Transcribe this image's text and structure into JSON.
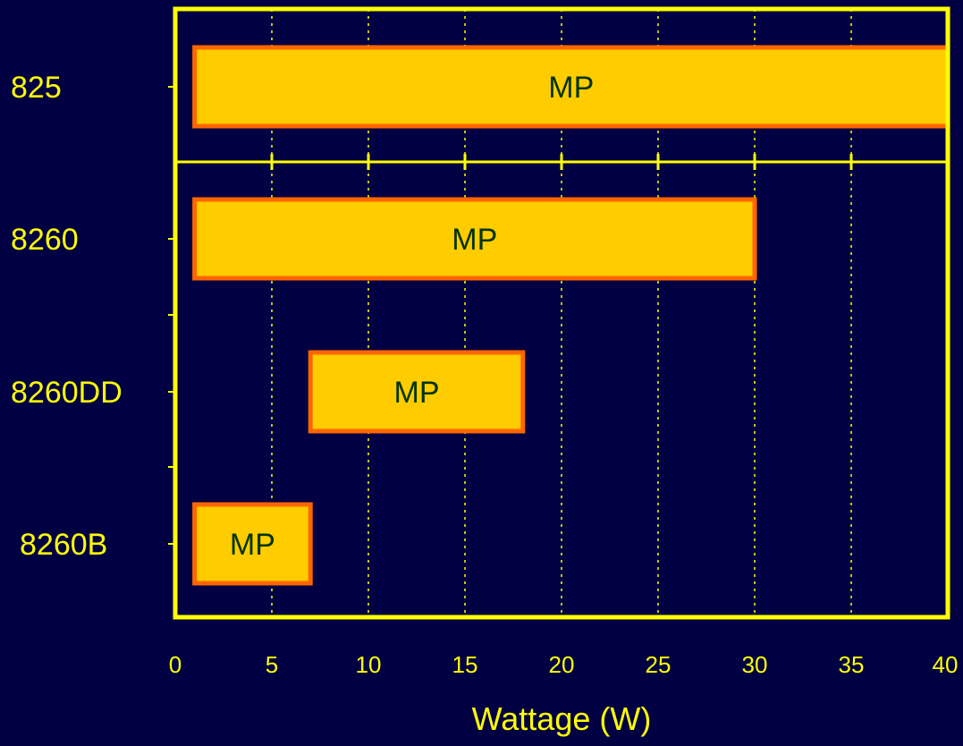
{
  "chart_data": {
    "type": "bar",
    "orientation": "horizontal",
    "categories": [
      "825",
      "8260",
      "8260DD",
      "8260B"
    ],
    "bars": [
      {
        "category": "825",
        "start": 1,
        "end": 40,
        "label": "MP"
      },
      {
        "category": "8260",
        "start": 1,
        "end": 30,
        "label": "MP"
      },
      {
        "category": "8260DD",
        "start": 7,
        "end": 18,
        "label": "MP"
      },
      {
        "category": "8260B",
        "start": 1,
        "end": 7,
        "label": "MP"
      }
    ],
    "xticks": [
      "0",
      "5",
      "10",
      "15",
      "20",
      "25",
      "30",
      "35",
      "40"
    ],
    "xlim": [
      0,
      40
    ],
    "xlabel": "Wattage (W)",
    "ylabel": "",
    "title": "",
    "grid": "vertical dotted",
    "legend": "none",
    "colors": {
      "background": "#000042",
      "axis": "#FFFF00",
      "bar_fill": "#FFCC00",
      "bar_border": "#FF6600",
      "bar_text": "#003300",
      "category_text": "#FFFF00",
      "tick_text": "#FFFF00"
    }
  }
}
